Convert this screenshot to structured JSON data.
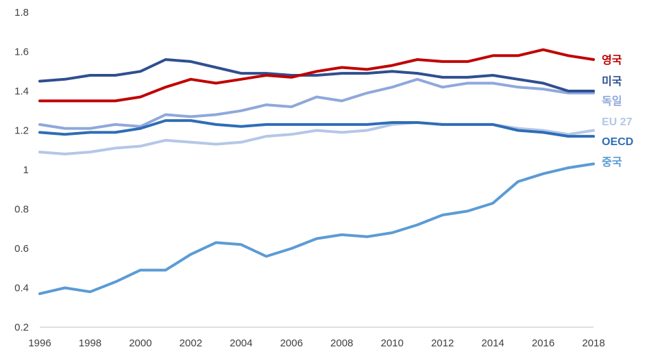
{
  "chart_data": {
    "type": "line",
    "x": [
      1996,
      1997,
      1998,
      1999,
      2000,
      2001,
      2002,
      2003,
      2004,
      2005,
      2006,
      2007,
      2008,
      2009,
      2010,
      2011,
      2012,
      2013,
      2014,
      2015,
      2016,
      2017,
      2018
    ],
    "xticks": [
      "1996",
      "1998",
      "2000",
      "2002",
      "2004",
      "2006",
      "2008",
      "2010",
      "2012",
      "2014",
      "2016",
      "2018"
    ],
    "yticks": [
      "0.2",
      "0.4",
      "0.6",
      "0.8",
      "1",
      "1.2",
      "1.4",
      "1.6",
      "1.8"
    ],
    "ylim": [
      0.2,
      1.8
    ],
    "xlim": [
      1996,
      2018
    ],
    "grid": false,
    "legend": "right",
    "series": [
      {
        "name": "영국",
        "color": "#c00000",
        "values": [
          1.35,
          1.35,
          1.35,
          1.35,
          1.37,
          1.42,
          1.46,
          1.44,
          1.46,
          1.48,
          1.47,
          1.5,
          1.52,
          1.51,
          1.53,
          1.56,
          1.55,
          1.55,
          1.58,
          1.58,
          1.61,
          1.58,
          1.56
        ]
      },
      {
        "name": "미국",
        "color": "#2f4f8f",
        "values": [
          1.45,
          1.46,
          1.48,
          1.48,
          1.5,
          1.56,
          1.55,
          1.52,
          1.49,
          1.49,
          1.48,
          1.48,
          1.49,
          1.49,
          1.5,
          1.49,
          1.47,
          1.47,
          1.48,
          1.46,
          1.44,
          1.4,
          1.4
        ]
      },
      {
        "name": "독일",
        "color": "#8fa8dc",
        "values": [
          1.23,
          1.21,
          1.21,
          1.23,
          1.22,
          1.28,
          1.27,
          1.28,
          1.3,
          1.33,
          1.32,
          1.37,
          1.35,
          1.39,
          1.42,
          1.46,
          1.42,
          1.44,
          1.44,
          1.42,
          1.41,
          1.39,
          1.39
        ]
      },
      {
        "name": "EU 27",
        "color": "#b4c7e7",
        "values": [
          1.09,
          1.08,
          1.09,
          1.11,
          1.12,
          1.15,
          1.14,
          1.13,
          1.14,
          1.17,
          1.18,
          1.2,
          1.19,
          1.2,
          1.23,
          1.24,
          1.23,
          1.23,
          1.23,
          1.21,
          1.2,
          1.18,
          1.2
        ]
      },
      {
        "name": "OECD",
        "color": "#2e6db5",
        "values": [
          1.19,
          1.18,
          1.19,
          1.19,
          1.21,
          1.25,
          1.25,
          1.23,
          1.22,
          1.23,
          1.23,
          1.23,
          1.23,
          1.23,
          1.24,
          1.24,
          1.23,
          1.23,
          1.23,
          1.2,
          1.19,
          1.17,
          1.17
        ]
      },
      {
        "name": "중국",
        "color": "#5b9bd5",
        "values": [
          0.37,
          0.4,
          0.38,
          0.43,
          0.49,
          0.49,
          0.57,
          0.63,
          0.62,
          0.56,
          0.6,
          0.65,
          0.67,
          0.66,
          0.68,
          0.72,
          0.77,
          0.79,
          0.83,
          0.94,
          0.98,
          1.01,
          1.03
        ]
      }
    ]
  }
}
